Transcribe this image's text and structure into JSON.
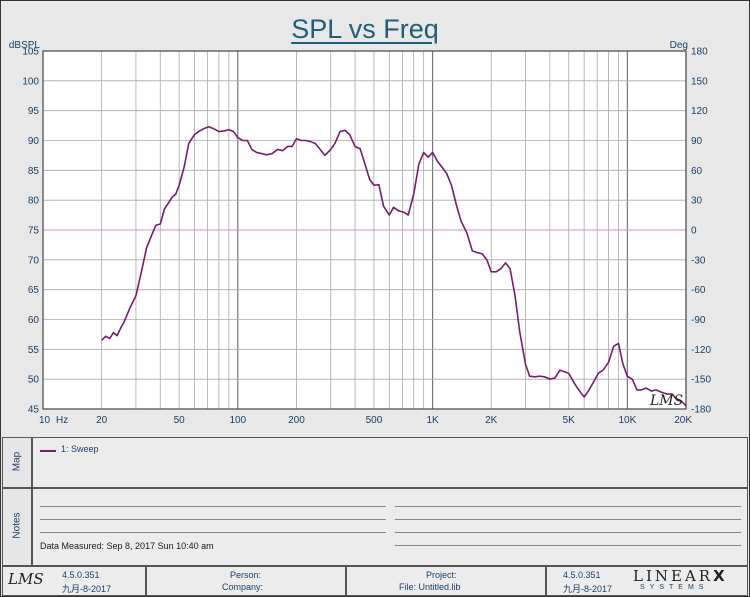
{
  "chart_data": {
    "type": "line",
    "title": "SPL vs Freq",
    "xscale": "log",
    "xlim": [
      10,
      20000
    ],
    "ylim": [
      45,
      105
    ],
    "y2lim": [
      -180,
      180
    ],
    "ylabel": "dBSPL",
    "y2label": "Deg",
    "xunit": "Hz",
    "grid": true,
    "x_ticks": [
      "10",
      "20",
      "50",
      "100",
      "200",
      "500",
      "1K",
      "2K",
      "5K",
      "10K",
      "20K"
    ],
    "x_tick_values": [
      10,
      20,
      50,
      100,
      200,
      500,
      1000,
      2000,
      5000,
      10000,
      20000
    ],
    "y_ticks": [
      45,
      50,
      55,
      60,
      65,
      70,
      75,
      80,
      85,
      90,
      95,
      100,
      105
    ],
    "y2_ticks": [
      -180,
      -150,
      -120,
      -90,
      -60,
      -30,
      0,
      30,
      60,
      90,
      120,
      150,
      180
    ],
    "reference_line_y2": 0,
    "series": [
      {
        "name": "1: Sweep",
        "color": "#7a1a6e",
        "x": [
          20,
          21,
          22,
          23,
          24,
          25,
          26,
          28,
          30,
          32,
          34,
          36,
          38,
          40,
          42,
          44,
          46,
          48,
          50,
          53,
          56,
          60,
          63,
          67,
          71,
          75,
          80,
          85,
          90,
          95,
          100,
          106,
          112,
          118,
          125,
          133,
          140,
          150,
          160,
          170,
          180,
          190,
          200,
          212,
          224,
          237,
          250,
          265,
          280,
          300,
          315,
          335,
          355,
          375,
          400,
          425,
          450,
          475,
          500,
          530,
          560,
          600,
          630,
          670,
          710,
          750,
          800,
          850,
          900,
          950,
          1000,
          1060,
          1120,
          1180,
          1250,
          1330,
          1400,
          1500,
          1600,
          1700,
          1800,
          1900,
          2000,
          2120,
          2240,
          2370,
          2500,
          2650,
          2800,
          3000,
          3150,
          3350,
          3550,
          3750,
          4000,
          4250,
          4500,
          5000,
          5300,
          5600,
          6000,
          6300,
          6700,
          7100,
          7500,
          8000,
          8500,
          9000,
          9500,
          10000,
          10600,
          11200,
          11800,
          12500,
          13300,
          14000,
          15000,
          16000,
          17000,
          18000,
          19000,
          20000
        ],
        "y": [
          56.5,
          57.2,
          56.8,
          57.8,
          57.3,
          58.5,
          59.5,
          62.0,
          64.0,
          68.0,
          72.0,
          74.0,
          75.8,
          76.0,
          78.5,
          79.5,
          80.5,
          81.0,
          82.5,
          85.5,
          89.5,
          91.0,
          91.5,
          92.0,
          92.3,
          92.0,
          91.5,
          91.6,
          91.8,
          91.5,
          90.5,
          90.0,
          90.0,
          88.5,
          88.0,
          87.8,
          87.6,
          87.8,
          88.5,
          88.3,
          89.0,
          89.0,
          90.3,
          90.0,
          90.0,
          89.8,
          89.5,
          88.5,
          87.5,
          88.5,
          89.5,
          91.5,
          91.7,
          91.0,
          89.0,
          88.6,
          86.0,
          83.5,
          82.5,
          82.6,
          79.0,
          77.5,
          78.8,
          78.2,
          78.0,
          77.5,
          81.0,
          86.0,
          88.0,
          87.2,
          88.0,
          86.5,
          85.5,
          84.5,
          82.5,
          79.0,
          76.5,
          74.5,
          71.5,
          71.2,
          71.0,
          70.0,
          68.0,
          68.0,
          68.5,
          69.5,
          68.5,
          64.0,
          58.0,
          52.5,
          50.5,
          50.4,
          50.5,
          50.4,
          50.0,
          50.2,
          51.5,
          51.0,
          49.5,
          48.3,
          47.0,
          48.0,
          49.5,
          51.0,
          51.5,
          52.8,
          55.5,
          56.0,
          52.5,
          50.5,
          50.0,
          48.2,
          48.2,
          48.5,
          48.0,
          48.2,
          47.8,
          47.5,
          47.5,
          46.5,
          46.3,
          45.5
        ]
      }
    ]
  },
  "map": {
    "label": "Map",
    "legend_item": "1: Sweep"
  },
  "notes": {
    "label": "Notes",
    "measured": "Data Measured: Sep 8, 2017 Sun 10:40 am"
  },
  "footer": {
    "logo_left": "LMS",
    "version_left": "4.5.0.351",
    "date_left": "九月-8-2017",
    "person_label": "Person:",
    "company_label": "Company:",
    "project_label": "Project:",
    "file_label": "File: Untitled.lib",
    "version_right": "4.5.0.351",
    "date_right": "九月-8-2017",
    "brand_top": "LINEAR",
    "brand_bottom": "SYSTEMS",
    "brand_x": "X"
  }
}
